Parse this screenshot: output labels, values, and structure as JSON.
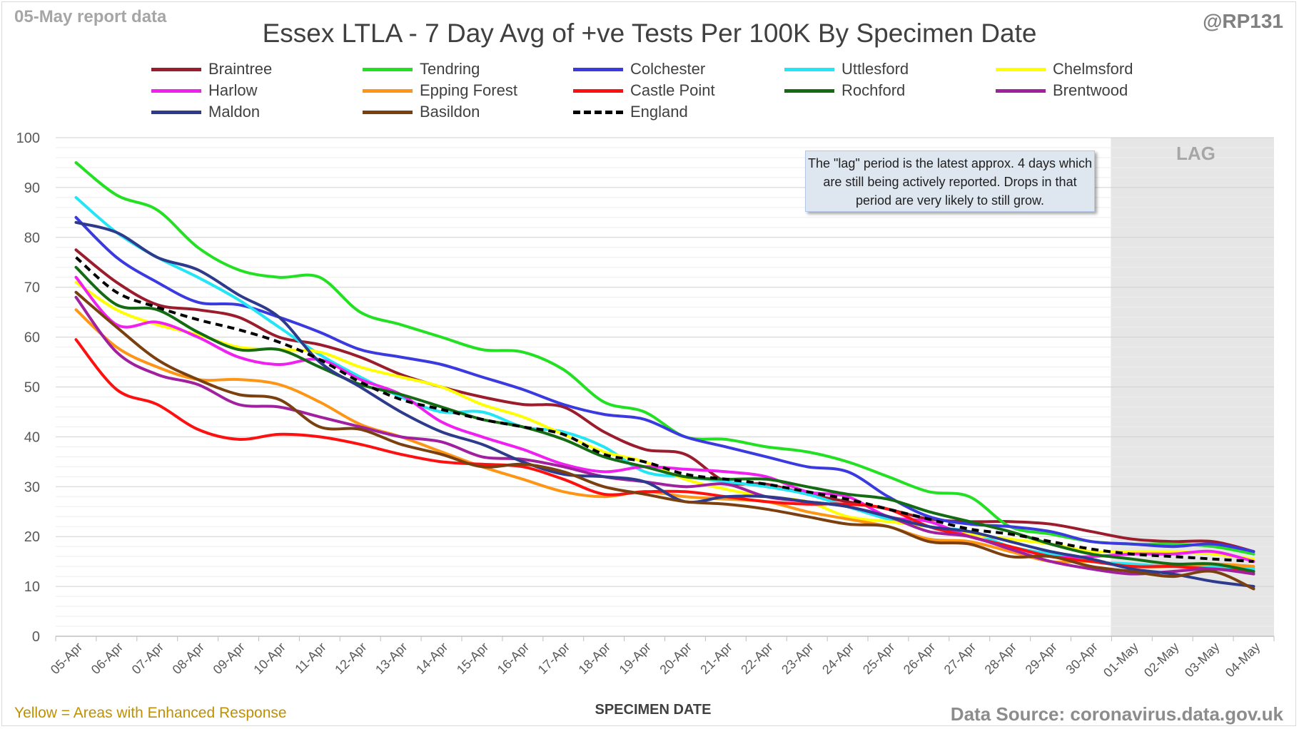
{
  "header": {
    "report_date": "05-May report data",
    "handle": "@RP131",
    "title": "Essex LTLA - 7 Day Avg of +ve Tests Per 100K By Specimen Date"
  },
  "annotations": {
    "lag_note": "The \"lag\" period is the latest approx. 4 days which are still being actively reported. Drops in that period are very likely to still grow.",
    "lag_label": "LAG"
  },
  "footer": {
    "note": "Yellow = Areas with Enhanced Response",
    "source": "Data Source: coronavirus.data.gov.uk"
  },
  "chart_data": {
    "type": "line",
    "title": "Essex LTLA - 7 Day Avg of +ve Tests Per 100K By Specimen Date",
    "xlabel": "SPECIMEN DATE",
    "ylabel": "",
    "ylim": [
      0,
      100
    ],
    "yticks": [
      0,
      10,
      20,
      30,
      40,
      50,
      60,
      70,
      80,
      90,
      100
    ],
    "grid": true,
    "legend_position": "top",
    "lag_period": [
      "01-May",
      "04-May"
    ],
    "x": [
      "05-Apr",
      "06-Apr",
      "07-Apr",
      "08-Apr",
      "09-Apr",
      "10-Apr",
      "11-Apr",
      "12-Apr",
      "13-Apr",
      "14-Apr",
      "15-Apr",
      "16-Apr",
      "17-Apr",
      "18-Apr",
      "19-Apr",
      "20-Apr",
      "21-Apr",
      "22-Apr",
      "23-Apr",
      "24-Apr",
      "25-Apr",
      "26-Apr",
      "27-Apr",
      "28-Apr",
      "29-Apr",
      "30-Apr",
      "01-May",
      "02-May",
      "03-May",
      "04-May"
    ],
    "series": [
      {
        "name": "Braintree",
        "color": "#9b1c2c",
        "dashed": false,
        "values": [
          77.5,
          71,
          66.5,
          65.5,
          64,
          60,
          58.5,
          56,
          52.5,
          50,
          48,
          46.5,
          46,
          41,
          37.5,
          36.5,
          31,
          30.5,
          28.5,
          27,
          25.5,
          23.5,
          23,
          23,
          22.5,
          21,
          19.5,
          19,
          19,
          17
        ]
      },
      {
        "name": "Tendring",
        "color": "#22e022",
        "dashed": false,
        "values": [
          95,
          88.5,
          85.5,
          78,
          73.5,
          72,
          72,
          65,
          62.5,
          60,
          57.5,
          57,
          53.5,
          47,
          45,
          40,
          39.5,
          38,
          37,
          35,
          32,
          29,
          28,
          22,
          20.5,
          19,
          18.5,
          18.5,
          18,
          16.5
        ]
      },
      {
        "name": "Colchester",
        "color": "#3a3ae0",
        "dashed": false,
        "values": [
          84,
          76,
          71,
          67,
          66.5,
          64,
          61,
          57.5,
          56,
          54.5,
          52,
          49.5,
          46.5,
          44.5,
          43.5,
          40,
          38,
          36,
          34,
          33,
          28,
          24,
          22.5,
          22,
          21,
          19,
          18.5,
          18,
          18.5,
          17
        ]
      },
      {
        "name": "Uttlesford",
        "color": "#22e5f5",
        "dashed": false,
        "values": [
          88,
          81,
          76,
          72,
          67.5,
          62,
          56.5,
          52,
          48,
          45,
          45,
          42,
          41,
          38,
          33,
          32,
          31,
          30,
          28.5,
          26,
          23.5,
          22,
          21,
          18,
          16.5,
          15,
          14.5,
          14,
          14,
          13.5
        ]
      },
      {
        "name": "Chelmsford",
        "color": "#ffff00",
        "dashed": false,
        "values": [
          71,
          65.5,
          62.5,
          60.5,
          58,
          57.5,
          57,
          54,
          52,
          50,
          46.5,
          44,
          40.5,
          37,
          35,
          31.5,
          29.5,
          28,
          27,
          24,
          23,
          22,
          20.5,
          19.5,
          18.5,
          17,
          17,
          17,
          16.5,
          15.5
        ]
      },
      {
        "name": "Harlow",
        "color": "#f020f0",
        "dashed": false,
        "values": [
          72,
          62.5,
          63,
          60,
          56,
          54.5,
          55.5,
          51.5,
          48.5,
          43,
          40,
          37.5,
          34.5,
          33,
          34,
          33.5,
          33,
          32,
          29,
          28,
          24,
          23,
          20,
          18,
          16,
          16,
          16.5,
          16.5,
          17,
          15
        ]
      },
      {
        "name": "Epping Forest",
        "color": "#ff9515",
        "dashed": false,
        "values": [
          65.5,
          58,
          54,
          51.5,
          51.5,
          50.5,
          47,
          42.5,
          40,
          37,
          34,
          31.5,
          29,
          28,
          29,
          28,
          27.5,
          27,
          25,
          23.5,
          22,
          19.5,
          19,
          17,
          15,
          15,
          14,
          14,
          14.5,
          14
        ]
      },
      {
        "name": "Castle Point",
        "color": "#ff1010",
        "dashed": false,
        "values": [
          59.5,
          49.5,
          46.5,
          41.5,
          39.5,
          40.5,
          40,
          38.5,
          36.5,
          35,
          34.5,
          34,
          31.5,
          28.5,
          29,
          29,
          28,
          27,
          26.5,
          26.5,
          25.5,
          22,
          20,
          18,
          16,
          15,
          14,
          14,
          13.5,
          13
        ]
      },
      {
        "name": "Rochford",
        "color": "#136b13",
        "dashed": false,
        "values": [
          74,
          66.5,
          65.5,
          61,
          57.5,
          57.5,
          54,
          50.5,
          48.5,
          46,
          43.5,
          42,
          39.5,
          36,
          34,
          32,
          31.5,
          31.5,
          30,
          28.5,
          27.5,
          25,
          23,
          21,
          18.5,
          16.5,
          15.5,
          14.5,
          14.5,
          13
        ]
      },
      {
        "name": "Brentwood",
        "color": "#a020a0",
        "dashed": false,
        "values": [
          68,
          57,
          52.5,
          50.5,
          46.5,
          46,
          44,
          42,
          40,
          39,
          36,
          35.5,
          34,
          32,
          31,
          30,
          30.5,
          28,
          27,
          26,
          24,
          21,
          20,
          17.5,
          15,
          13.5,
          12.5,
          13,
          13.5,
          12.5
        ]
      },
      {
        "name": "Maldon",
        "color": "#2e3a8c",
        "dashed": false,
        "values": [
          83,
          81,
          76,
          73.5,
          68.5,
          64,
          55,
          50,
          45,
          41,
          38.5,
          35,
          32.5,
          32,
          31,
          27,
          28,
          28,
          27,
          26,
          24,
          22,
          21,
          19,
          17,
          15.5,
          13.5,
          12.5,
          11,
          10
        ]
      },
      {
        "name": "Basildon",
        "color": "#7b4010",
        "dashed": false,
        "values": [
          69,
          62,
          55.5,
          51.5,
          48.5,
          47.5,
          42,
          41.5,
          38.5,
          36.5,
          34,
          34.5,
          33,
          30,
          28.5,
          27,
          26.5,
          25.5,
          24,
          22.5,
          22,
          19,
          18.5,
          16,
          16,
          14,
          13,
          12,
          13,
          9.5
        ]
      },
      {
        "name": "England",
        "color": "#000000",
        "dashed": true,
        "values": [
          76,
          69,
          66,
          63.5,
          61.5,
          59,
          55.5,
          51,
          47.5,
          45.5,
          43.5,
          42,
          40.5,
          36.5,
          35,
          32.5,
          31.5,
          30.5,
          29,
          27.5,
          25.5,
          23.5,
          21.5,
          20.5,
          19,
          17.5,
          16.5,
          16,
          15.5,
          15
        ]
      }
    ]
  }
}
